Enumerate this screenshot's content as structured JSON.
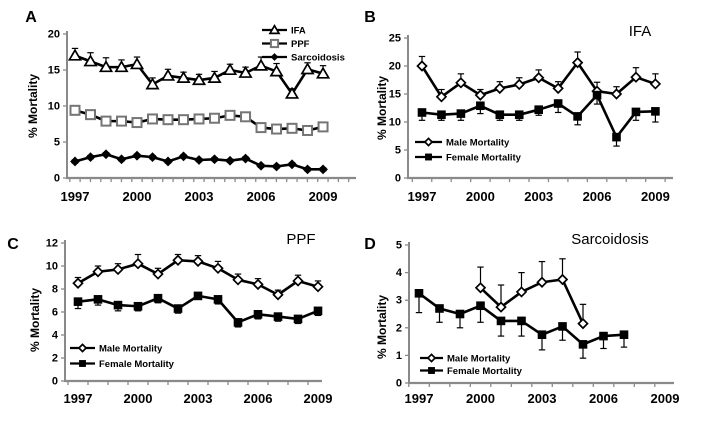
{
  "figure": {
    "background": "#ffffff",
    "text_color": "#000000",
    "axis_color": "#8a8a8a",
    "series_color": "#000000"
  },
  "chart_data": [
    {
      "panel": "A",
      "type": "line",
      "title": "",
      "ylabel": "% Mortality",
      "ymax": 20,
      "yticks": [
        0,
        5,
        10,
        15,
        20
      ],
      "xlabels": [
        1997,
        2000,
        2003,
        2006,
        2009
      ],
      "xlim": [
        1997,
        2009
      ],
      "grid": false,
      "legend_position": "top-right",
      "series": [
        {
          "name": "IFA",
          "marker": "triangle-open",
          "x": [
            1997,
            1997.75,
            1998.5,
            1999.25,
            2000,
            2000.75,
            2001.5,
            2002.25,
            2003,
            2003.75,
            2004.5,
            2005.25,
            2006,
            2006.75,
            2007.5,
            2008.25,
            2009
          ],
          "y": [
            17.0,
            16.2,
            15.4,
            15.4,
            15.8,
            13.0,
            14.2,
            13.9,
            13.6,
            13.9,
            15.0,
            14.6,
            15.6,
            14.8,
            11.7,
            15.1,
            14.5
          ],
          "err_up": [
            1.0,
            1.2,
            1.3,
            1.0,
            1.0,
            0.9,
            0.9,
            0.8,
            0.8,
            0.9,
            0.8,
            0.8,
            1.2,
            1.1,
            0.7,
            0.9,
            1.1
          ]
        },
        {
          "name": "PPF",
          "marker": "square-open",
          "x": [
            1997,
            1997.75,
            1998.5,
            1999.25,
            2000,
            2000.75,
            2001.5,
            2002.25,
            2003,
            2003.75,
            2004.5,
            2005.25,
            2006,
            2006.75,
            2007.5,
            2008.25,
            2009
          ],
          "y": [
            9.4,
            8.8,
            7.9,
            7.9,
            7.7,
            8.2,
            8.1,
            8.1,
            8.2,
            8.3,
            8.7,
            8.5,
            7.0,
            6.8,
            6.9,
            6.6,
            7.1
          ]
        },
        {
          "name": "Sarcoidosis",
          "marker": "diamond-filled",
          "x": [
            1997,
            1997.75,
            1998.5,
            1999.25,
            2000,
            2000.75,
            2001.5,
            2002.25,
            2003,
            2003.75,
            2004.5,
            2005.25,
            2006,
            2006.75,
            2007.5,
            2008.25,
            2009
          ],
          "y": [
            2.3,
            2.9,
            3.3,
            2.6,
            3.1,
            2.9,
            2.3,
            3.0,
            2.5,
            2.6,
            2.4,
            2.7,
            1.7,
            1.6,
            1.9,
            1.2,
            1.2
          ],
          "err": 0.22
        }
      ]
    },
    {
      "panel": "B",
      "type": "line",
      "title": "IFA",
      "ylabel": "% Mortality",
      "ymax": 25,
      "yticks": [
        0,
        5,
        10,
        15,
        20,
        25
      ],
      "xlabels": [
        1997,
        2000,
        2003,
        2006,
        2009
      ],
      "xlim": [
        1997,
        2009
      ],
      "grid": false,
      "legend_position": "bottom-left",
      "series": [
        {
          "name": "Male Mortality",
          "marker": "diamond-open",
          "x": [
            1997,
            1998,
            1999,
            2000,
            2001,
            2002,
            2003,
            2004,
            2005,
            2006,
            2007,
            2008,
            2009
          ],
          "y": [
            20.0,
            14.5,
            17.0,
            14.8,
            16.0,
            16.7,
            17.9,
            16.0,
            20.6,
            15.5,
            15.0,
            18.0,
            16.8
          ],
          "err_up": [
            1.7,
            1.3,
            1.6,
            1.0,
            1.2,
            1.2,
            1.4,
            1.2,
            1.9,
            1.6,
            1.3,
            1.7,
            1.8
          ]
        },
        {
          "name": "Female Mortality",
          "marker": "square-filled",
          "x": [
            1997,
            1998,
            1999,
            2000,
            2001,
            2002,
            2003,
            2004,
            2005,
            2006,
            2007,
            2008,
            2009
          ],
          "y": [
            11.7,
            11.3,
            11.5,
            12.9,
            11.3,
            11.3,
            12.2,
            13.3,
            11.0,
            14.8,
            7.3,
            11.8,
            11.9
          ],
          "err_down": [
            1.4,
            1.0,
            1.2,
            1.4,
            1.0,
            1.0,
            1.0,
            1.6,
            1.5,
            1.6,
            1.6,
            1.5,
            1.9
          ]
        }
      ]
    },
    {
      "panel": "C",
      "type": "line",
      "title": "PPF",
      "ylabel": "% Mortality",
      "ymax": 12,
      "yticks": [
        0,
        2,
        4,
        6,
        8,
        10,
        12
      ],
      "xlabels": [
        1997,
        2000,
        2003,
        2006,
        2009
      ],
      "xlim": [
        1997,
        2009
      ],
      "grid": false,
      "legend_position": "bottom-left",
      "series": [
        {
          "name": "Male Mortality",
          "marker": "diamond-open",
          "x": [
            1997,
            1998,
            1999,
            2000,
            2001,
            2002,
            2003,
            2004,
            2005,
            2006,
            2007,
            2008,
            2009
          ],
          "y": [
            8.5,
            9.5,
            9.7,
            10.2,
            9.3,
            10.5,
            10.4,
            9.8,
            8.8,
            8.4,
            7.5,
            8.7,
            8.2
          ],
          "err_up": [
            0.5,
            0.5,
            0.5,
            0.8,
            0.5,
            0.5,
            0.5,
            0.6,
            0.5,
            0.5,
            0.4,
            0.5,
            0.5
          ]
        },
        {
          "name": "Female Mortality",
          "marker": "square-filled",
          "x": [
            1997,
            1998,
            1999,
            2000,
            2001,
            2002,
            2003,
            2004,
            2005,
            2006,
            2007,
            2008,
            2009
          ],
          "y": [
            6.9,
            7.1,
            6.6,
            6.5,
            7.2,
            6.3,
            7.4,
            7.1,
            5.1,
            5.8,
            5.6,
            5.4,
            6.1
          ],
          "err_down": [
            0.6,
            0.5,
            0.5,
            0.4,
            0.4,
            0.4,
            0.3,
            0.4,
            0.4,
            0.4,
            0.4,
            0.4,
            0.4
          ]
        }
      ]
    },
    {
      "panel": "D",
      "type": "line",
      "title": "Sarcoidosis",
      "ylabel": "% Mortality",
      "ymax": 5,
      "yticks": [
        0,
        1,
        2,
        3,
        4,
        5
      ],
      "xlabels": [
        1997,
        2000,
        2003,
        2006,
        2009
      ],
      "xlim": [
        1997,
        2009
      ],
      "grid": false,
      "legend_position": "bottom-left",
      "series": [
        {
          "name": "Male Mortality",
          "marker": "diamond-open",
          "x": [
            2000,
            2001,
            2002,
            2003,
            2004,
            2005
          ],
          "y": [
            3.45,
            2.75,
            3.3,
            3.65,
            3.75,
            2.15
          ],
          "err_up": [
            0.75,
            0.8,
            0.7,
            0.75,
            0.75,
            0.7
          ]
        },
        {
          "name": "Female Mortality",
          "marker": "square-filled",
          "x": [
            1997,
            1998,
            1999,
            2000,
            2001,
            2002,
            2003,
            2004,
            2005,
            2006,
            2007
          ],
          "y": [
            3.25,
            2.7,
            2.5,
            2.8,
            2.25,
            2.25,
            1.75,
            2.05,
            1.4,
            1.7,
            1.75
          ],
          "err_down": [
            0.7,
            0.5,
            0.5,
            0.6,
            0.55,
            0.55,
            0.55,
            0.5,
            0.5,
            0.45,
            0.45
          ]
        }
      ]
    }
  ]
}
